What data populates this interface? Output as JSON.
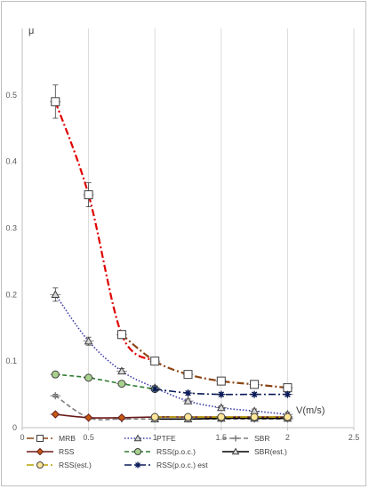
{
  "chart_data": {
    "type": "line",
    "title": "",
    "xlabel": "V(m/s)",
    "ylabel": "μ",
    "xlim": [
      0,
      2.5
    ],
    "ylim": [
      0,
      0.6
    ],
    "x_ticks": [
      "0",
      "0.5",
      "1",
      "1.5",
      "2",
      "2.5"
    ],
    "y_ticks": [
      "0",
      "0.1",
      "0.2",
      "0.3",
      "0.4",
      "0.5"
    ],
    "grid": "vertical",
    "legend_position": "bottom",
    "series": [
      {
        "name": "MRB",
        "color": "#8b4513",
        "accent": "#e00000",
        "marker": "square",
        "line": "dashdot",
        "x": [
          0.25,
          0.5,
          0.75,
          1.0,
          1.25,
          1.5,
          1.75,
          2.0
        ],
        "y": [
          0.49,
          0.35,
          0.14,
          0.1,
          0.08,
          0.07,
          0.065,
          0.06
        ],
        "err": [
          0.025,
          0.018,
          0.006,
          0.004,
          0.004,
          0.004,
          0.004,
          0.004
        ]
      },
      {
        "name": "PTFE",
        "color": "#3a3aa8",
        "marker": "triangle",
        "line": "dotted",
        "x": [
          0.25,
          0.5,
          0.75,
          1.0,
          1.25,
          1.5,
          1.75,
          2.0
        ],
        "y": [
          0.2,
          0.13,
          0.085,
          0.06,
          0.04,
          0.03,
          0.025,
          0.02
        ],
        "err": [
          0.01,
          0.006,
          0.004,
          0.003,
          0.003,
          0.003,
          0.003,
          0.003
        ]
      },
      {
        "name": "SBR",
        "color": "#7f7f7f",
        "marker": "plus",
        "line": "dashed",
        "x": [
          0.25,
          0.5,
          0.75,
          1.0,
          1.25,
          1.5,
          1.75,
          2.0
        ],
        "y": [
          0.048,
          0.015,
          0.013,
          0.013,
          0.013,
          0.013,
          0.013,
          0.013
        ],
        "err": [
          0.002,
          0.001,
          0.001,
          0.001,
          0.001,
          0.001,
          0.001,
          0.001
        ]
      },
      {
        "name": "RSS",
        "color": "#6b1a1a",
        "marker": "diamond",
        "line": "solid",
        "x": [
          0.25,
          0.5,
          0.75,
          1.0,
          1.25,
          1.5,
          1.75,
          2.0
        ],
        "y": [
          0.02,
          0.015,
          0.015,
          0.016,
          0.016,
          0.016,
          0.016,
          0.016
        ],
        "err": [
          0.001,
          0.001,
          0.001,
          0.001,
          0.001,
          0.001,
          0.001,
          0.001
        ]
      },
      {
        "name": "RSS(p.o.c.)",
        "color": "#2e7d32",
        "marker": "circle",
        "line": "dashed",
        "x": [
          0.25,
          0.5,
          0.75,
          1.0
        ],
        "y": [
          0.08,
          0.075,
          0.066,
          0.058
        ],
        "err": [
          0.003,
          0.003,
          0.003,
          0.003
        ]
      },
      {
        "name": "SBR(est.)",
        "color": "#000000",
        "marker": "triangle",
        "line": "solid",
        "x": [
          1.0,
          1.25,
          1.5,
          1.75,
          2.0
        ],
        "y": [
          0.013,
          0.013,
          0.014,
          0.014,
          0.014
        ],
        "err": [
          0.001,
          0.001,
          0.001,
          0.001,
          0.001
        ]
      },
      {
        "name": "RSS(est.)",
        "color": "#b8a000",
        "marker": "circle",
        "line": "dashdot",
        "x": [
          1.0,
          1.25,
          1.5,
          1.75,
          2.0
        ],
        "y": [
          0.016,
          0.016,
          0.016,
          0.016,
          0.016
        ],
        "err": [
          0.001,
          0.001,
          0.001,
          0.001,
          0.001
        ]
      },
      {
        "name": "RSS(p.o.c.) est",
        "color": "#0a1a5a",
        "marker": "star",
        "line": "dashdot",
        "x": [
          1.0,
          1.25,
          1.5,
          1.75,
          2.0
        ],
        "y": [
          0.058,
          0.052,
          0.05,
          0.05,
          0.05
        ],
        "err": [
          0.003,
          0.003,
          0.003,
          0.003,
          0.003
        ]
      }
    ]
  }
}
